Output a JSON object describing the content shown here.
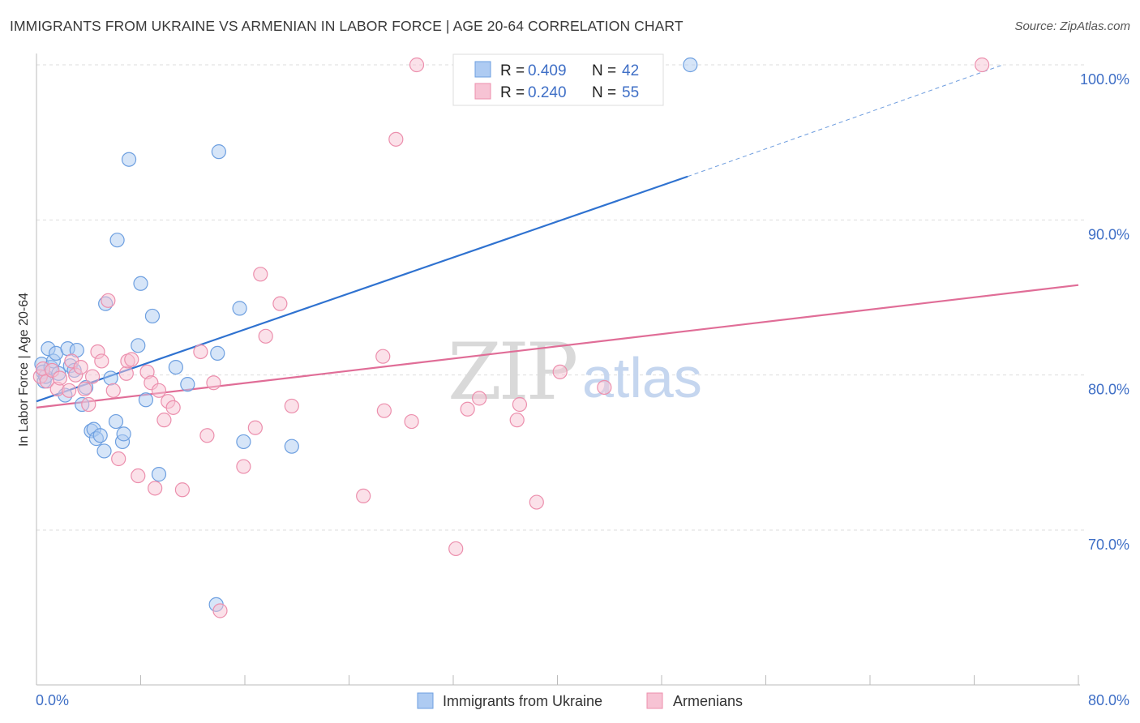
{
  "header": {
    "title": "IMMIGRANTS FROM UKRAINE VS ARMENIAN IN LABOR FORCE | AGE 20-64 CORRELATION CHART",
    "source": "Source: ZipAtlas.com"
  },
  "watermark": {
    "zip": "ZIP",
    "atlas": "atlas"
  },
  "colors": {
    "series1_fill": "#aecbf2",
    "series1_stroke": "#6d9fe0",
    "series1_line": "#2f72d0",
    "series2_fill": "#f7c3d4",
    "series2_stroke": "#ec8fad",
    "series2_line": "#e06d97",
    "tick_label": "#3f6fc6",
    "grid": "#dddddd"
  },
  "legend": {
    "rows": [
      {
        "r_label": "R = ",
        "r_value": "0.409",
        "n_label": "N = ",
        "n_value": "42"
      },
      {
        "r_label": "R = ",
        "r_value": "0.240",
        "n_label": "N = ",
        "n_value": "55"
      }
    ]
  },
  "chart_data": {
    "type": "scatter",
    "title": "IMMIGRANTS FROM UKRAINE VS ARMENIAN IN LABOR FORCE | AGE 20-64 CORRELATION CHART",
    "xlabel": "",
    "ylabel": "In Labor Force | Age 20-64",
    "xlim": [
      0,
      80
    ],
    "ylim": [
      62.5,
      101.5
    ],
    "x_tick_labels": [
      "0.0%",
      "80.0%"
    ],
    "y_ticks": [
      70,
      80,
      90,
      100
    ],
    "y_tick_labels": [
      "70.0%",
      "80.0%",
      "90.0%",
      "100.0%"
    ],
    "grid": true,
    "legend_position": "top-center",
    "series": [
      {
        "name": "Immigrants from Ukraine",
        "r": 0.409,
        "n": 42,
        "trend": {
          "x": [
            0,
            50
          ],
          "y": [
            78.3,
            92.8
          ],
          "dashed_extension": {
            "x": [
              50,
              74.2
            ],
            "y": [
              92.8,
              100
            ]
          }
        },
        "points": [
          [
            0.4,
            80.7
          ],
          [
            0.5,
            80.2
          ],
          [
            0.6,
            79.6
          ],
          [
            0.7,
            79.9
          ],
          [
            0.9,
            81.7
          ],
          [
            1.1,
            80.5
          ],
          [
            1.3,
            80.9
          ],
          [
            1.5,
            81.4
          ],
          [
            1.7,
            80.1
          ],
          [
            2.2,
            78.7
          ],
          [
            2.4,
            81.7
          ],
          [
            2.6,
            80.6
          ],
          [
            2.9,
            80.3
          ],
          [
            3.1,
            81.6
          ],
          [
            3.5,
            78.1
          ],
          [
            3.8,
            79.2
          ],
          [
            4.2,
            76.4
          ],
          [
            4.4,
            76.5
          ],
          [
            4.6,
            75.9
          ],
          [
            4.9,
            76.1
          ],
          [
            5.2,
            75.1
          ],
          [
            5.3,
            84.6
          ],
          [
            5.7,
            79.8
          ],
          [
            6.1,
            77.0
          ],
          [
            6.2,
            88.7
          ],
          [
            6.6,
            75.7
          ],
          [
            6.7,
            76.2
          ],
          [
            7.1,
            93.9
          ],
          [
            7.8,
            81.9
          ],
          [
            8.0,
            85.9
          ],
          [
            8.4,
            78.4
          ],
          [
            8.9,
            83.8
          ],
          [
            9.4,
            73.6
          ],
          [
            10.7,
            80.5
          ],
          [
            11.6,
            79.4
          ],
          [
            13.8,
            65.2
          ],
          [
            13.9,
            81.4
          ],
          [
            14.0,
            94.4
          ],
          [
            15.6,
            84.3
          ],
          [
            15.9,
            75.7
          ],
          [
            19.6,
            75.4
          ],
          [
            50.2,
            100.0
          ]
        ]
      },
      {
        "name": "Armenians",
        "r": 0.24,
        "n": 55,
        "trend": {
          "x": [
            0,
            80
          ],
          "y": [
            77.9,
            85.8
          ]
        },
        "points": [
          [
            0.3,
            79.9
          ],
          [
            0.5,
            80.4
          ],
          [
            0.8,
            79.6
          ],
          [
            1.2,
            80.3
          ],
          [
            1.6,
            79.1
          ],
          [
            1.8,
            79.8
          ],
          [
            2.5,
            79.0
          ],
          [
            2.7,
            80.9
          ],
          [
            3.0,
            80.0
          ],
          [
            3.4,
            80.5
          ],
          [
            3.7,
            79.1
          ],
          [
            4.0,
            78.1
          ],
          [
            4.3,
            79.9
          ],
          [
            4.7,
            81.5
          ],
          [
            5.0,
            80.9
          ],
          [
            5.5,
            84.8
          ],
          [
            5.9,
            79.0
          ],
          [
            6.3,
            74.6
          ],
          [
            6.9,
            80.1
          ],
          [
            7.0,
            80.9
          ],
          [
            7.3,
            81.0
          ],
          [
            7.8,
            73.5
          ],
          [
            8.5,
            80.2
          ],
          [
            8.8,
            79.5
          ],
          [
            9.1,
            72.7
          ],
          [
            9.4,
            79.0
          ],
          [
            9.8,
            77.1
          ],
          [
            10.1,
            78.3
          ],
          [
            10.5,
            77.9
          ],
          [
            11.2,
            72.6
          ],
          [
            12.6,
            81.5
          ],
          [
            13.1,
            76.1
          ],
          [
            13.6,
            79.5
          ],
          [
            14.1,
            64.8
          ],
          [
            15.9,
            74.1
          ],
          [
            16.8,
            76.6
          ],
          [
            17.2,
            86.5
          ],
          [
            17.6,
            82.5
          ],
          [
            18.7,
            84.6
          ],
          [
            19.6,
            78.0
          ],
          [
            25.1,
            72.2
          ],
          [
            26.6,
            81.2
          ],
          [
            26.7,
            77.7
          ],
          [
            27.6,
            95.2
          ],
          [
            28.8,
            77.0
          ],
          [
            29.2,
            100.0
          ],
          [
            32.2,
            68.8
          ],
          [
            33.1,
            77.8
          ],
          [
            34.0,
            78.5
          ],
          [
            36.9,
            77.1
          ],
          [
            37.1,
            78.1
          ],
          [
            38.4,
            71.8
          ],
          [
            40.2,
            80.2
          ],
          [
            43.6,
            79.2
          ],
          [
            72.6,
            100.0
          ]
        ]
      }
    ]
  }
}
